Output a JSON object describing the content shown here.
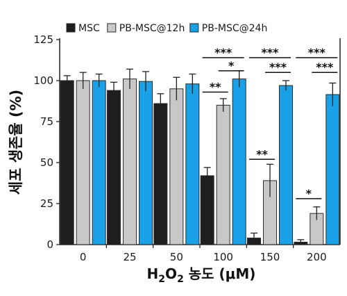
{
  "chart_data": {
    "type": "bar",
    "ylabel": "세포 생존율 (%)",
    "xlabel": {
      "parts": [
        {
          "text": "H",
          "style": "normal"
        },
        {
          "text": "2",
          "style": "sub"
        },
        {
          "text": "O",
          "style": "normal"
        },
        {
          "text": "2",
          "style": "sub"
        },
        {
          "text": " 농도 (μM)",
          "style": "normal"
        }
      ]
    },
    "ylim": [
      0,
      125
    ],
    "yticks": [
      0,
      25,
      50,
      75,
      100,
      125
    ],
    "categories": [
      "0",
      "25",
      "50",
      "100",
      "150",
      "200"
    ],
    "legend_position": "top",
    "series": [
      {
        "name": "MSC",
        "color": "#1e1e1e",
        "values": [
          100,
          94,
          86,
          42,
          4,
          1.5
        ],
        "errors": [
          3,
          5,
          6,
          5,
          3,
          1.5
        ]
      },
      {
        "name": "PB-MSC@12h",
        "color": "#c8c8c8",
        "values": [
          100,
          101,
          95,
          85,
          39,
          19
        ],
        "errors": [
          5,
          6,
          7,
          4,
          10,
          4
        ]
      },
      {
        "name": "PB-MSC@24h",
        "color": "#1aa0e6",
        "values": [
          100,
          99.5,
          98,
          101,
          97,
          91.5
        ],
        "errors": [
          4,
          6,
          6,
          5,
          3,
          7
        ]
      }
    ],
    "significance": [
      {
        "category": 3,
        "from": 0,
        "to": 1,
        "label": "**",
        "y": 93
      },
      {
        "category": 3,
        "from": 0,
        "to": 2,
        "label": "***",
        "y": 114
      },
      {
        "category": 3,
        "from": 1,
        "to": 2,
        "label": "*",
        "y": 106
      },
      {
        "category": 4,
        "from": 0,
        "to": 1,
        "label": "**",
        "y": 52
      },
      {
        "category": 4,
        "from": 0,
        "to": 2,
        "label": "***",
        "y": 114
      },
      {
        "category": 4,
        "from": 1,
        "to": 2,
        "label": "***",
        "y": 105
      },
      {
        "category": 5,
        "from": 0,
        "to": 1,
        "label": "*",
        "y": 28
      },
      {
        "category": 5,
        "from": 0,
        "to": 2,
        "label": "***",
        "y": 114
      },
      {
        "category": 5,
        "from": 1,
        "to": 2,
        "label": "***",
        "y": 105
      }
    ]
  }
}
